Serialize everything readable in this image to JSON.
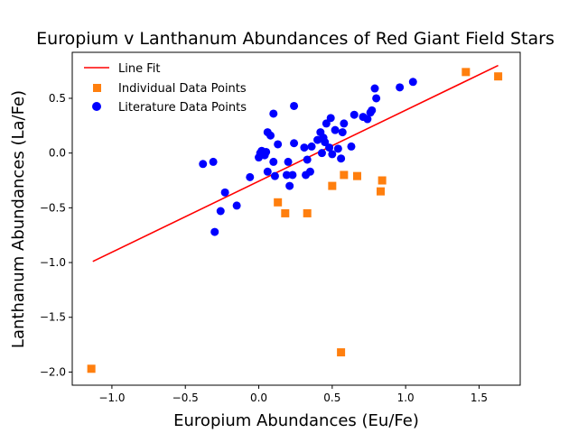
{
  "chart_data": {
    "type": "scatter",
    "title": "Europium v Lanthanum Abundances of Red Giant Field Stars",
    "xlabel": "Europium Abundances (Eu/Fe)",
    "ylabel": "Lanthanum Abundances (La/Fe)",
    "xlim": [
      -1.27,
      1.78
    ],
    "ylim": [
      -2.12,
      0.92
    ],
    "xticks": [
      -1.0,
      -0.5,
      0.0,
      0.5,
      1.0,
      1.5
    ],
    "xtick_labels": [
      "−1.0",
      "−0.5",
      "0.0",
      "0.5",
      "1.0",
      "1.5"
    ],
    "yticks": [
      -2.0,
      -1.5,
      -1.0,
      -0.5,
      0.0,
      0.5
    ],
    "ytick_labels": [
      "−2.0",
      "−1.5",
      "−1.0",
      "−0.5",
      "0.0",
      "0.5"
    ],
    "grid": false,
    "legend_position": "upper-left",
    "series": [
      {
        "name": "Line Fit",
        "kind": "line",
        "color": "#ff0000",
        "x": [
          -1.13,
          1.63
        ],
        "y": [
          -0.99,
          0.8
        ]
      },
      {
        "name": "Individual Data Points",
        "kind": "square",
        "color": "#ff7f0e",
        "x": [
          -1.14,
          0.13,
          0.18,
          0.33,
          0.5,
          0.56,
          0.58,
          0.67,
          0.83,
          0.84,
          1.41,
          1.63
        ],
        "y": [
          -1.97,
          -0.45,
          -0.55,
          -0.55,
          -0.3,
          -1.82,
          -0.2,
          -0.21,
          -0.35,
          -0.25,
          0.74,
          0.7
        ]
      },
      {
        "name": "Literature Data Points",
        "kind": "circle",
        "color": "#0000ff",
        "x": [
          -0.38,
          -0.31,
          -0.3,
          -0.26,
          -0.23,
          -0.15,
          -0.06,
          0.0,
          0.01,
          0.02,
          0.04,
          0.05,
          0.06,
          0.06,
          0.08,
          0.1,
          0.1,
          0.11,
          0.13,
          0.19,
          0.2,
          0.21,
          0.23,
          0.24,
          0.24,
          0.31,
          0.32,
          0.33,
          0.35,
          0.36,
          0.4,
          0.42,
          0.43,
          0.44,
          0.45,
          0.46,
          0.48,
          0.49,
          0.5,
          0.52,
          0.54,
          0.56,
          0.57,
          0.58,
          0.63,
          0.65,
          0.71,
          0.74,
          0.76,
          0.77,
          0.79,
          0.8,
          0.96,
          1.05
        ],
        "y": [
          -0.1,
          -0.08,
          -0.72,
          -0.53,
          -0.36,
          -0.48,
          -0.22,
          -0.04,
          0.0,
          0.02,
          -0.02,
          0.01,
          -0.17,
          0.19,
          0.16,
          0.36,
          -0.08,
          -0.21,
          0.08,
          -0.2,
          -0.08,
          -0.3,
          -0.2,
          0.09,
          0.43,
          0.05,
          -0.2,
          -0.06,
          -0.17,
          0.06,
          0.12,
          0.19,
          0.0,
          0.14,
          0.1,
          0.27,
          0.05,
          0.32,
          -0.01,
          0.21,
          0.04,
          -0.05,
          0.19,
          0.27,
          0.06,
          0.35,
          0.33,
          0.31,
          0.37,
          0.39,
          0.59,
          0.5,
          0.6,
          0.65
        ]
      }
    ]
  }
}
